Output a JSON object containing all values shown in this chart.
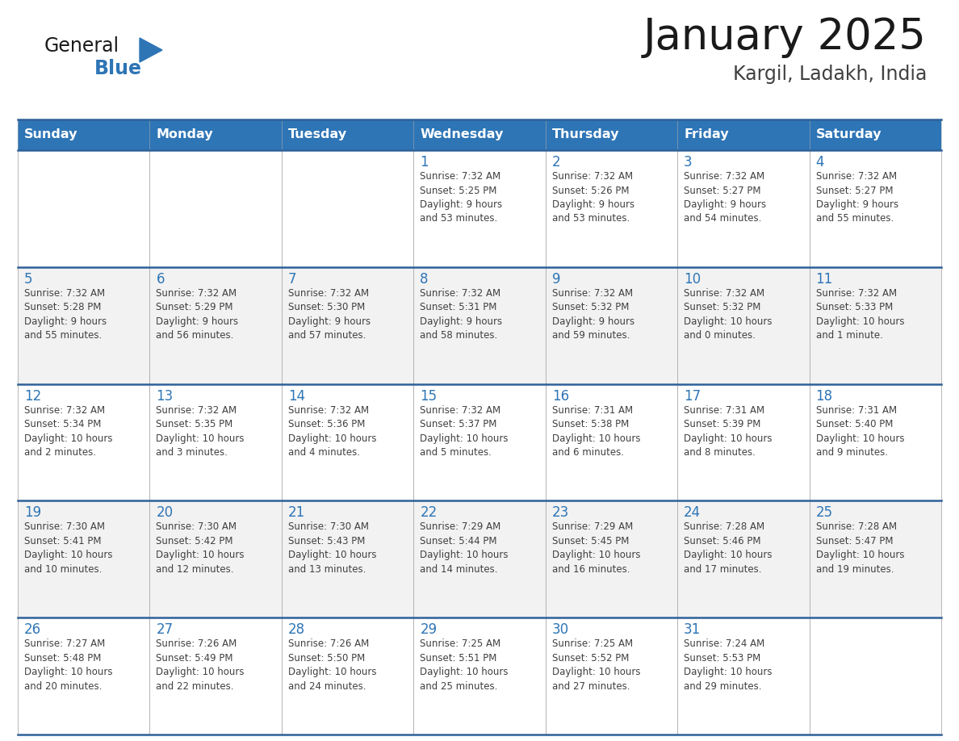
{
  "title": "January 2025",
  "subtitle": "Kargil, Ladakh, India",
  "days_of_week": [
    "Sunday",
    "Monday",
    "Tuesday",
    "Wednesday",
    "Thursday",
    "Friday",
    "Saturday"
  ],
  "header_bg": "#2E75B6",
  "header_text": "#FFFFFF",
  "cell_bg_even": "#F2F2F2",
  "cell_bg_odd": "#FFFFFF",
  "border_color_strong": "#2E6099",
  "border_color_light": "#AAAAAA",
  "day_num_color": "#2E75B6",
  "cell_text_color": "#404040",
  "title_color": "#1a1a1a",
  "subtitle_color": "#404040",
  "logo_general_color": "#1a1a1a",
  "logo_blue_color": "#2E75B6",
  "weeks": [
    [
      {
        "day": null,
        "info": null
      },
      {
        "day": null,
        "info": null
      },
      {
        "day": null,
        "info": null
      },
      {
        "day": 1,
        "info": "Sunrise: 7:32 AM\nSunset: 5:25 PM\nDaylight: 9 hours\nand 53 minutes."
      },
      {
        "day": 2,
        "info": "Sunrise: 7:32 AM\nSunset: 5:26 PM\nDaylight: 9 hours\nand 53 minutes."
      },
      {
        "day": 3,
        "info": "Sunrise: 7:32 AM\nSunset: 5:27 PM\nDaylight: 9 hours\nand 54 minutes."
      },
      {
        "day": 4,
        "info": "Sunrise: 7:32 AM\nSunset: 5:27 PM\nDaylight: 9 hours\nand 55 minutes."
      }
    ],
    [
      {
        "day": 5,
        "info": "Sunrise: 7:32 AM\nSunset: 5:28 PM\nDaylight: 9 hours\nand 55 minutes."
      },
      {
        "day": 6,
        "info": "Sunrise: 7:32 AM\nSunset: 5:29 PM\nDaylight: 9 hours\nand 56 minutes."
      },
      {
        "day": 7,
        "info": "Sunrise: 7:32 AM\nSunset: 5:30 PM\nDaylight: 9 hours\nand 57 minutes."
      },
      {
        "day": 8,
        "info": "Sunrise: 7:32 AM\nSunset: 5:31 PM\nDaylight: 9 hours\nand 58 minutes."
      },
      {
        "day": 9,
        "info": "Sunrise: 7:32 AM\nSunset: 5:32 PM\nDaylight: 9 hours\nand 59 minutes."
      },
      {
        "day": 10,
        "info": "Sunrise: 7:32 AM\nSunset: 5:32 PM\nDaylight: 10 hours\nand 0 minutes."
      },
      {
        "day": 11,
        "info": "Sunrise: 7:32 AM\nSunset: 5:33 PM\nDaylight: 10 hours\nand 1 minute."
      }
    ],
    [
      {
        "day": 12,
        "info": "Sunrise: 7:32 AM\nSunset: 5:34 PM\nDaylight: 10 hours\nand 2 minutes."
      },
      {
        "day": 13,
        "info": "Sunrise: 7:32 AM\nSunset: 5:35 PM\nDaylight: 10 hours\nand 3 minutes."
      },
      {
        "day": 14,
        "info": "Sunrise: 7:32 AM\nSunset: 5:36 PM\nDaylight: 10 hours\nand 4 minutes."
      },
      {
        "day": 15,
        "info": "Sunrise: 7:32 AM\nSunset: 5:37 PM\nDaylight: 10 hours\nand 5 minutes."
      },
      {
        "day": 16,
        "info": "Sunrise: 7:31 AM\nSunset: 5:38 PM\nDaylight: 10 hours\nand 6 minutes."
      },
      {
        "day": 17,
        "info": "Sunrise: 7:31 AM\nSunset: 5:39 PM\nDaylight: 10 hours\nand 8 minutes."
      },
      {
        "day": 18,
        "info": "Sunrise: 7:31 AM\nSunset: 5:40 PM\nDaylight: 10 hours\nand 9 minutes."
      }
    ],
    [
      {
        "day": 19,
        "info": "Sunrise: 7:30 AM\nSunset: 5:41 PM\nDaylight: 10 hours\nand 10 minutes."
      },
      {
        "day": 20,
        "info": "Sunrise: 7:30 AM\nSunset: 5:42 PM\nDaylight: 10 hours\nand 12 minutes."
      },
      {
        "day": 21,
        "info": "Sunrise: 7:30 AM\nSunset: 5:43 PM\nDaylight: 10 hours\nand 13 minutes."
      },
      {
        "day": 22,
        "info": "Sunrise: 7:29 AM\nSunset: 5:44 PM\nDaylight: 10 hours\nand 14 minutes."
      },
      {
        "day": 23,
        "info": "Sunrise: 7:29 AM\nSunset: 5:45 PM\nDaylight: 10 hours\nand 16 minutes."
      },
      {
        "day": 24,
        "info": "Sunrise: 7:28 AM\nSunset: 5:46 PM\nDaylight: 10 hours\nand 17 minutes."
      },
      {
        "day": 25,
        "info": "Sunrise: 7:28 AM\nSunset: 5:47 PM\nDaylight: 10 hours\nand 19 minutes."
      }
    ],
    [
      {
        "day": 26,
        "info": "Sunrise: 7:27 AM\nSunset: 5:48 PM\nDaylight: 10 hours\nand 20 minutes."
      },
      {
        "day": 27,
        "info": "Sunrise: 7:26 AM\nSunset: 5:49 PM\nDaylight: 10 hours\nand 22 minutes."
      },
      {
        "day": 28,
        "info": "Sunrise: 7:26 AM\nSunset: 5:50 PM\nDaylight: 10 hours\nand 24 minutes."
      },
      {
        "day": 29,
        "info": "Sunrise: 7:25 AM\nSunset: 5:51 PM\nDaylight: 10 hours\nand 25 minutes."
      },
      {
        "day": 30,
        "info": "Sunrise: 7:25 AM\nSunset: 5:52 PM\nDaylight: 10 hours\nand 27 minutes."
      },
      {
        "day": 31,
        "info": "Sunrise: 7:24 AM\nSunset: 5:53 PM\nDaylight: 10 hours\nand 29 minutes."
      },
      {
        "day": null,
        "info": null
      }
    ]
  ],
  "fig_width": 11.88,
  "fig_height": 9.18,
  "dpi": 100
}
